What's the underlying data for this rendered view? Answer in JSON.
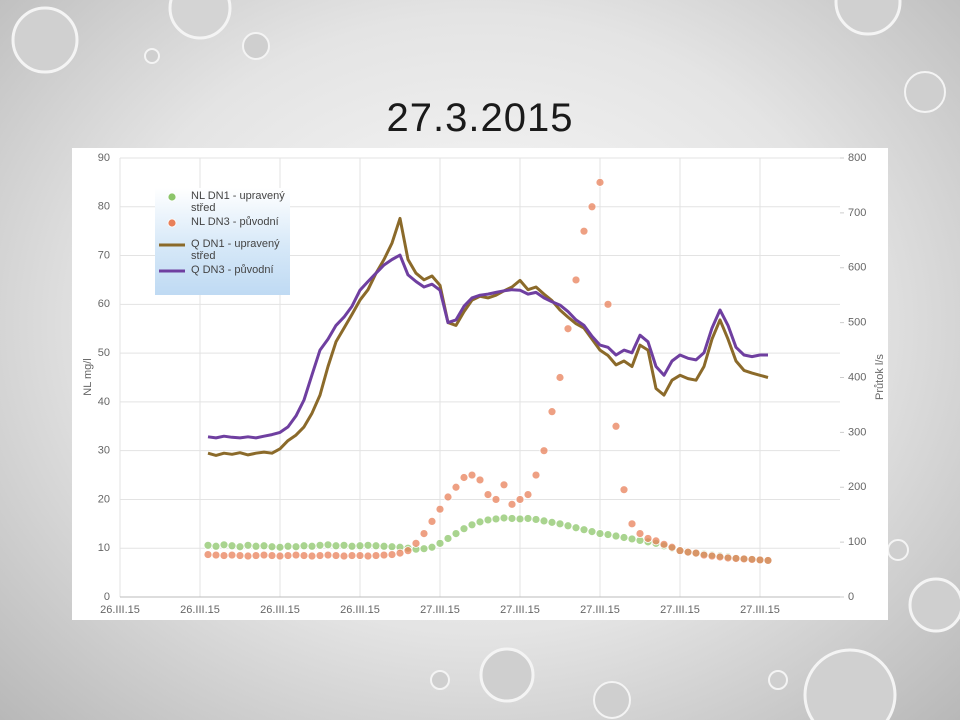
{
  "title": "27.3.2015",
  "chart_data": {
    "type": "combo",
    "y_label": "NL mg/l",
    "y2_label": "Průtok l/s",
    "legend": "top-left",
    "grid": true,
    "xlim": [
      0,
      9
    ],
    "xticks": [
      {
        "value": 0,
        "label": "26.III.15"
      },
      {
        "value": 1,
        "label": "26.III.15"
      },
      {
        "value": 2,
        "label": "26.III.15"
      },
      {
        "value": 3,
        "label": "26.III.15"
      },
      {
        "value": 4,
        "label": "27.III.15"
      },
      {
        "value": 5,
        "label": "27.III.15"
      },
      {
        "value": 6,
        "label": "27.III.15"
      },
      {
        "value": 7,
        "label": "27.III.15"
      },
      {
        "value": 8,
        "label": "27.III.15"
      }
    ],
    "ylim": [
      0,
      90
    ],
    "yticks": [
      0,
      10,
      20,
      30,
      40,
      50,
      60,
      70,
      80,
      90
    ],
    "y2lim": [
      0,
      800
    ],
    "y2ticks": [
      0,
      100,
      200,
      300,
      400,
      500,
      600,
      700,
      800
    ],
    "x": [
      1.1,
      1.2,
      1.3,
      1.4,
      1.5,
      1.6,
      1.7,
      1.8,
      1.9,
      2.0,
      2.1,
      2.2,
      2.3,
      2.4,
      2.5,
      2.6,
      2.7,
      2.8,
      2.9,
      3.0,
      3.1,
      3.2,
      3.3,
      3.4,
      3.5,
      3.6,
      3.7,
      3.8,
      3.9,
      4.0,
      4.1,
      4.2,
      4.3,
      4.4,
      4.5,
      4.6,
      4.7,
      4.8,
      4.9,
      5.0,
      5.1,
      5.2,
      5.3,
      5.4,
      5.5,
      5.6,
      5.7,
      5.8,
      5.9,
      6.0,
      6.1,
      6.2,
      6.3,
      6.4,
      6.5,
      6.6,
      6.7,
      6.8,
      6.9,
      7.0,
      7.1,
      7.2,
      7.3,
      7.4,
      7.5,
      7.6,
      7.7,
      7.8,
      7.9,
      8.0,
      8.1
    ],
    "series": [
      {
        "name": "NL DN1 - upravený střed",
        "type": "scatter",
        "color": "#8cc56a",
        "values": [
          10.6,
          10.4,
          10.7,
          10.5,
          10.3,
          10.6,
          10.4,
          10.5,
          10.3,
          10.2,
          10.4,
          10.3,
          10.5,
          10.4,
          10.6,
          10.7,
          10.5,
          10.6,
          10.4,
          10.5,
          10.6,
          10.5,
          10.4,
          10.3,
          10.2,
          10.0,
          9.8,
          9.9,
          10.2,
          11.0,
          12,
          13,
          14,
          14.8,
          15.4,
          15.8,
          16,
          16.2,
          16.1,
          16,
          16.1,
          15.9,
          15.6,
          15.3,
          15,
          14.6,
          14.2,
          13.8,
          13.4,
          13,
          12.8,
          12.5,
          12.2,
          11.9,
          11.6,
          11.3,
          11,
          10.5,
          10.0,
          9.5,
          9.2,
          9.0,
          8.8,
          8.6,
          8.4,
          8.2,
          8.0,
          7.9,
          7.8,
          7.6,
          7.5
        ]
      },
      {
        "name": "NL DN3 - původní",
        "type": "scatter",
        "color": "#e8805a",
        "values": [
          8.7,
          8.6,
          8.5,
          8.6,
          8.5,
          8.4,
          8.5,
          8.6,
          8.5,
          8.4,
          8.5,
          8.6,
          8.5,
          8.4,
          8.5,
          8.6,
          8.5,
          8.4,
          8.5,
          8.5,
          8.4,
          8.5,
          8.6,
          8.7,
          9.0,
          9.5,
          11,
          13,
          15.5,
          18,
          20.5,
          22.5,
          24.5,
          25,
          24,
          21,
          20,
          23,
          19,
          20,
          21,
          25,
          30,
          38,
          45,
          55,
          65,
          75,
          80,
          85,
          60,
          35,
          22,
          15,
          13,
          12,
          11.5,
          10.8,
          10.2,
          9.5,
          9.2,
          9.0,
          8.6,
          8.4,
          8.2,
          8.0,
          7.9,
          7.8,
          7.7,
          7.6,
          7.5
        ]
      },
      {
        "name": "Q DN1 - upravený střed",
        "type": "line",
        "axis": "y2",
        "color": "#8b6a2a",
        "values": [
          262,
          258,
          262,
          260,
          263,
          259,
          262,
          264,
          262,
          270,
          285,
          295,
          310,
          335,
          368,
          420,
          465,
          490,
          515,
          541,
          560,
          590,
          615,
          645,
          690,
          615,
          590,
          578,
          585,
          568,
          500,
          495,
          520,
          541,
          548,
          545,
          550,
          558,
          565,
          577,
          560,
          565,
          552,
          540,
          523,
          510,
          498,
          490,
          470,
          450,
          440,
          423,
          430,
          420,
          459,
          450,
          380,
          368,
          395,
          404,
          398,
          395,
          420,
          470,
          505,
          470,
          430,
          413,
          408,
          404,
          400
        ]
      },
      {
        "name": "Q DN3 - původní",
        "type": "line",
        "axis": "y2",
        "color": "#6f3fa0",
        "values": [
          292,
          290,
          293,
          291,
          290,
          292,
          290,
          293,
          296,
          300,
          310,
          330,
          359,
          405,
          450,
          470,
          495,
          510,
          530,
          559,
          575,
          590,
          605,
          615,
          623,
          587,
          575,
          565,
          570,
          559,
          500,
          505,
          530,
          545,
          550,
          552,
          555,
          558,
          560,
          559,
          552,
          555,
          545,
          538,
          532,
          520,
          505,
          495,
          475,
          459,
          455,
          441,
          450,
          445,
          477,
          465,
          420,
          404,
          430,
          441,
          435,
          432,
          445,
          490,
          523,
          495,
          455,
          441,
          438,
          441,
          441
        ]
      }
    ]
  }
}
